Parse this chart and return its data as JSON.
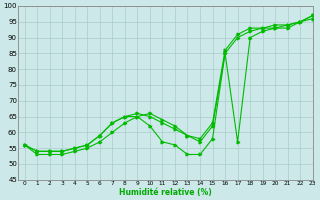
{
  "bg_color": "#cce8e8",
  "grid_color": "#aacccc",
  "line_color": "#00bb00",
  "xlabel": "Humidité relative (%)",
  "xlabel_color": "#00aa00",
  "ylim": [
    45,
    100
  ],
  "xlim": [
    -0.5,
    23
  ],
  "yticks": [
    45,
    50,
    55,
    60,
    65,
    70,
    75,
    80,
    85,
    90,
    95,
    100
  ],
  "xticks": [
    0,
    1,
    2,
    3,
    4,
    5,
    6,
    7,
    8,
    9,
    10,
    11,
    12,
    13,
    14,
    15,
    16,
    17,
    18,
    19,
    20,
    21,
    22,
    23
  ],
  "line1_x": [
    0,
    1,
    2,
    3,
    4,
    5,
    6,
    7,
    8,
    9,
    10,
    11,
    12,
    13,
    14,
    15,
    16,
    17,
    18,
    19,
    20,
    21,
    22,
    23
  ],
  "line1_y": [
    56,
    54,
    54,
    54,
    55,
    56,
    59,
    63,
    65,
    66,
    65,
    63,
    61,
    59,
    58,
    63,
    86,
    91,
    93,
    93,
    94,
    94,
    95,
    97
  ],
  "line2_x": [
    0,
    1,
    2,
    3,
    4,
    5,
    6,
    7,
    8,
    9,
    10,
    11,
    12,
    13,
    14,
    15,
    16,
    17,
    18,
    19,
    20,
    21,
    22,
    23
  ],
  "line2_y": [
    56,
    53,
    53,
    53,
    54,
    55,
    57,
    60,
    63,
    65,
    66,
    64,
    62,
    59,
    57,
    62,
    85,
    90,
    92,
    93,
    93,
    94,
    95,
    97
  ],
  "line3_x": [
    0,
    1,
    2,
    3,
    4,
    5,
    6,
    7,
    8,
    9,
    10,
    11,
    12,
    13,
    14,
    15,
    16,
    17,
    18,
    19,
    20,
    21,
    22,
    23
  ],
  "line3_y": [
    56,
    54,
    54,
    54,
    55,
    56,
    59,
    63,
    65,
    65,
    62,
    57,
    56,
    53,
    53,
    58,
    85,
    57,
    90,
    92,
    93,
    93,
    95,
    96
  ]
}
